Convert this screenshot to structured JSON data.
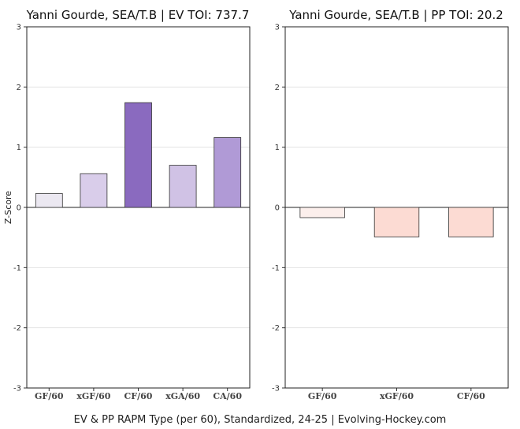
{
  "footer": "EV & PP RAPM Type (per 60), Standardized, 24-25    |    Evolving-Hockey.com",
  "chart_data": [
    {
      "type": "bar",
      "title": "Yanni Gourde, SEA/T.B  |  EV TOI: 737.7",
      "ylabel": "Z-Score",
      "ylim": [
        -3,
        3
      ],
      "yticks": [
        3,
        2,
        1,
        0,
        -1,
        -2,
        -3
      ],
      "grid": true,
      "categories": [
        "GF/60",
        "xGF/60",
        "CF/60",
        "xGA/60",
        "CA/60"
      ],
      "values": [
        0.23,
        0.56,
        1.74,
        0.7,
        1.16
      ],
      "colors": [
        "#ebe8f1",
        "#d9cdea",
        "#8a6abf",
        "#d0c2e5",
        "#b09ad6"
      ]
    },
    {
      "type": "bar",
      "title": "Yanni Gourde, SEA/T.B  |  PP TOI: 20.2",
      "ylabel": "",
      "ylim": [
        -3,
        3
      ],
      "yticks": [
        3,
        2,
        1,
        0,
        -1,
        -2,
        -3
      ],
      "grid": true,
      "categories": [
        "GF/60",
        "xGF/60",
        "CF/60"
      ],
      "values": [
        -0.17,
        -0.49,
        -0.49
      ],
      "colors": [
        "#fcefec",
        "#fcdbd3",
        "#fcdbd3"
      ]
    }
  ]
}
